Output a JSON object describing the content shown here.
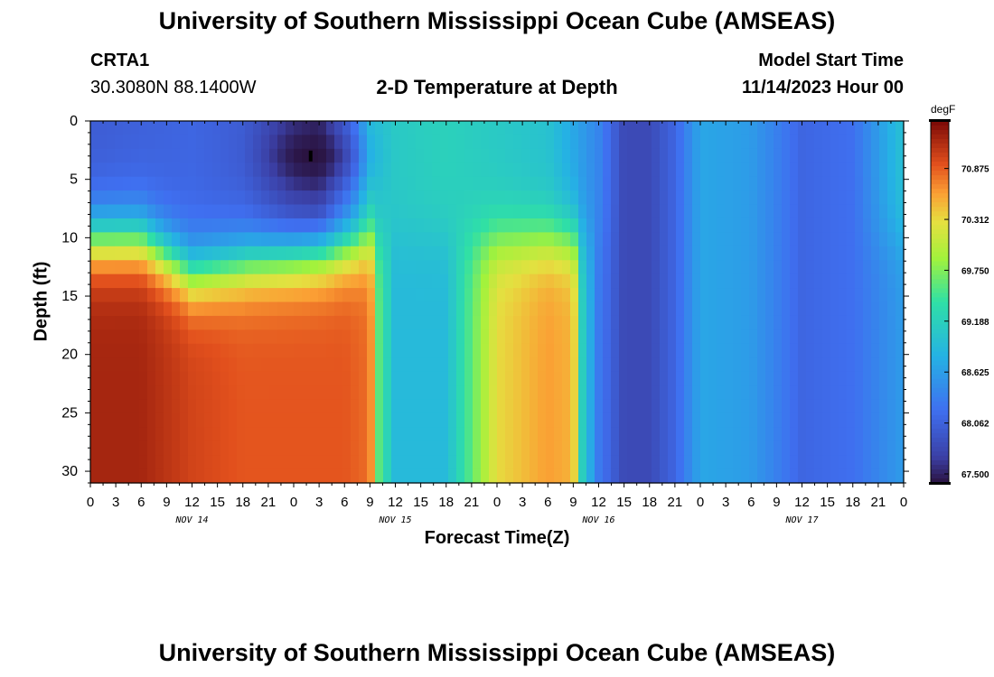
{
  "header": {
    "title": "University of Southern Mississippi Ocean Cube (AMSEAS)",
    "station": "CRTA1",
    "latlon": "30.3080N  88.1400W",
    "plot_title": "2-D Temperature at Depth",
    "model_start_label": "Model Start Time",
    "model_start_time": "11/14/2023 Hour 00"
  },
  "footer": {
    "title": "University of Southern Mississippi Ocean Cube (AMSEAS)"
  },
  "chart_data": {
    "type": "heatmap",
    "title": "2-D Temperature at Depth",
    "xlabel": "Forecast Time(Z)",
    "ylabel": "Depth (ft)",
    "x_tick_labels": [
      "0",
      "3",
      "6",
      "9",
      "12",
      "15",
      "18",
      "21",
      "0",
      "3",
      "6",
      "9",
      "12",
      "15",
      "18",
      "21",
      "0",
      "3",
      "6",
      "9",
      "12",
      "15",
      "18",
      "21",
      "0",
      "3",
      "6",
      "9",
      "12",
      "15",
      "18",
      "21",
      "0"
    ],
    "x_range_hours": [
      0,
      96
    ],
    "day_labels": [
      "NOV 14",
      "NOV 15",
      "NOV 16",
      "NOV 17"
    ],
    "y_ticks": [
      0,
      5,
      10,
      15,
      20,
      25,
      30
    ],
    "ylim": [
      0,
      31
    ],
    "y_inverted": true,
    "colorbar": {
      "units": "degF",
      "ticks": [
        "70.875",
        "70.312",
        "69.750",
        "69.188",
        "68.625",
        "68.062",
        "67.500"
      ],
      "range": [
        67.4,
        71.4
      ]
    },
    "surface_temperature_by_hour": {
      "hours": [
        0,
        6,
        12,
        18,
        24,
        27,
        31,
        33,
        36,
        42,
        48,
        54,
        60,
        63,
        66,
        69,
        72,
        78,
        84,
        90,
        96
      ],
      "values_degF": [
        68.0,
        68.05,
        68.1,
        68.0,
        67.6,
        67.5,
        68.2,
        68.9,
        69.1,
        69.2,
        69.1,
        69.0,
        68.4,
        67.8,
        67.8,
        68.1,
        68.7,
        68.6,
        68.1,
        68.2,
        69.0
      ]
    },
    "bottom_temperature_by_hour": {
      "hours": [
        0,
        6,
        12,
        18,
        24,
        30,
        33,
        34,
        36,
        42,
        48,
        54,
        57,
        58,
        60,
        63,
        66,
        69,
        72,
        78,
        84,
        90,
        96
      ],
      "values_degF": [
        71.2,
        71.2,
        71.0,
        70.9,
        70.9,
        70.9,
        70.8,
        69.6,
        68.9,
        68.9,
        70.3,
        70.6,
        70.5,
        69.2,
        68.3,
        67.8,
        67.8,
        68.1,
        68.7,
        68.6,
        68.1,
        68.2,
        68.6
      ]
    },
    "cold_anomaly": {
      "hour": 26,
      "depth_ft": 3,
      "value_degF": 67.4
    }
  }
}
